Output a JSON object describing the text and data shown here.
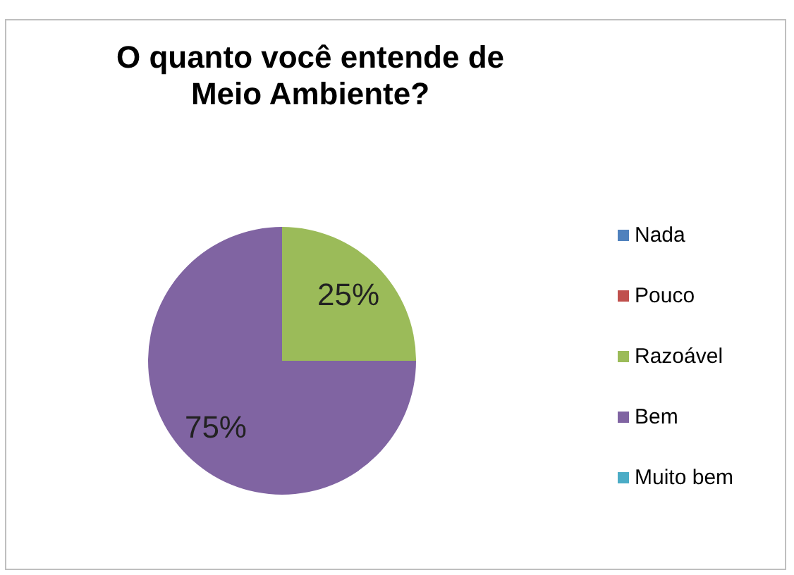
{
  "chart_data": {
    "type": "pie",
    "title": "O quanto você entende de Meio Ambiente?",
    "categories": [
      "Nada",
      "Pouco",
      "Razoável",
      "Bem",
      "Muito bem"
    ],
    "values": [
      0,
      0,
      25,
      75,
      0
    ],
    "colors": [
      "#4f81bd",
      "#c0504d",
      "#9bbb59",
      "#8064a2",
      "#4bacc6"
    ],
    "value_labels": [
      null,
      null,
      "25%",
      "75%",
      null
    ],
    "legend": "right"
  }
}
